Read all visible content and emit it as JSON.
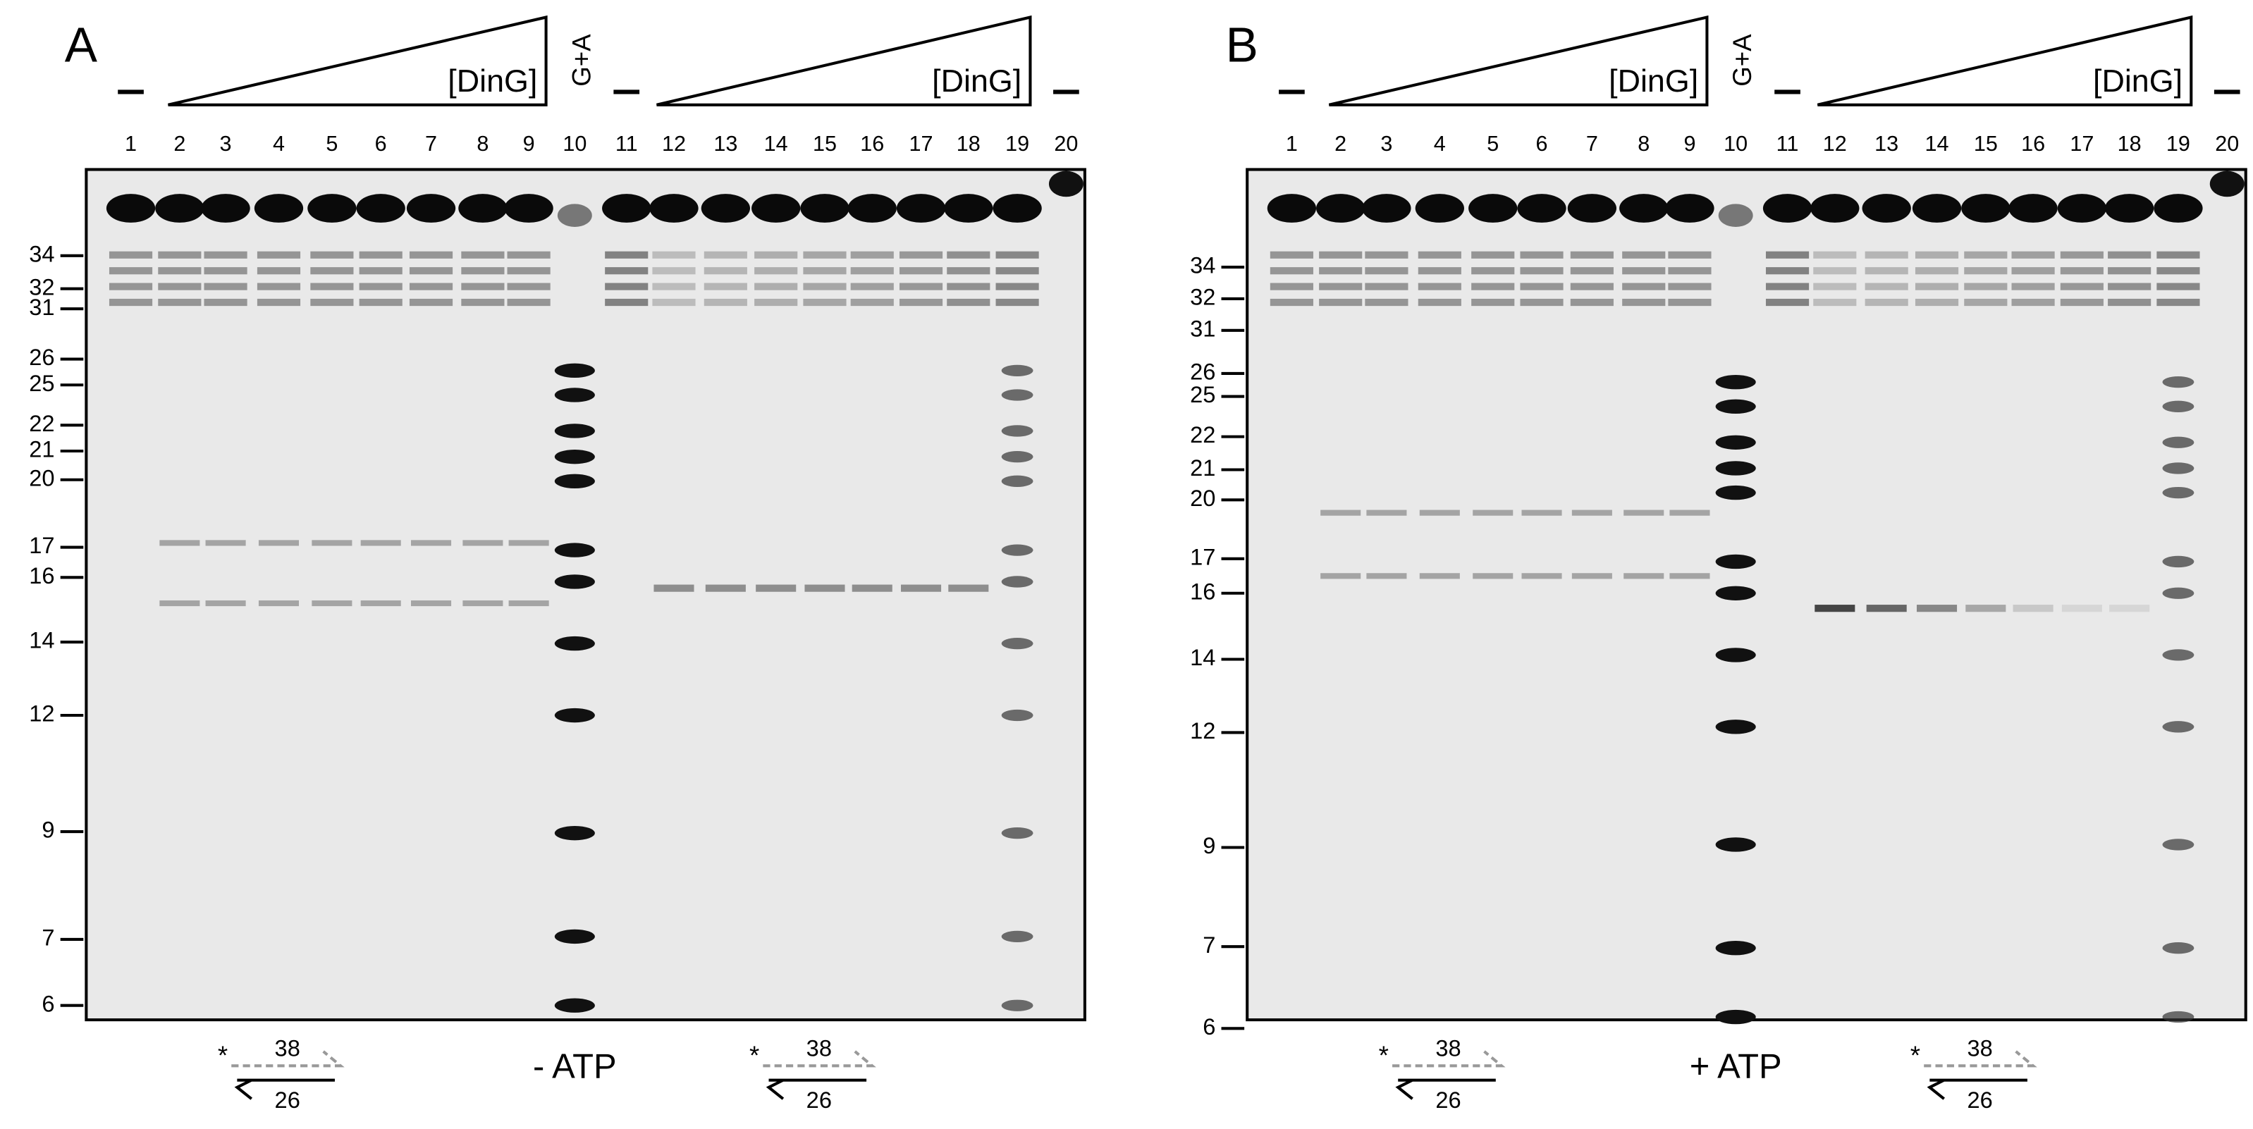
{
  "panels": [
    {
      "label": "A",
      "lanes": [
        1,
        2,
        3,
        4,
        5,
        6,
        7,
        8,
        9,
        10,
        11,
        12,
        13,
        14,
        15,
        16,
        17,
        18,
        19,
        20
      ],
      "titration": [
        "[DinG]",
        "[DinG]"
      ],
      "ladder": "G+A",
      "markers": [
        "34",
        "32",
        "31",
        "26",
        "25",
        "22",
        "21",
        "20",
        "17",
        "16",
        "14",
        "12",
        "9",
        "7",
        "6"
      ],
      "condition": "- ATP",
      "substrates": [
        {
          "star": "*",
          "top": "38",
          "bottom": "26"
        },
        {
          "star": "*",
          "top": "38",
          "bottom": "26"
        }
      ]
    },
    {
      "label": "B",
      "lanes": [
        1,
        2,
        3,
        4,
        5,
        6,
        7,
        8,
        9,
        10,
        11,
        12,
        13,
        14,
        15,
        16,
        17,
        18,
        19,
        20
      ],
      "titration": [
        "[DinG]",
        "[DinG]"
      ],
      "ladder": "G+A",
      "markers": [
        "34",
        "32",
        "31",
        "26",
        "25",
        "22",
        "21",
        "20",
        "17",
        "16",
        "14",
        "12",
        "9",
        "7",
        "6"
      ],
      "condition": "+ ATP",
      "substrates": [
        {
          "star": "*",
          "top": "38",
          "bottom": "26"
        },
        {
          "star": "*",
          "top": "38",
          "bottom": "26"
        }
      ]
    }
  ]
}
